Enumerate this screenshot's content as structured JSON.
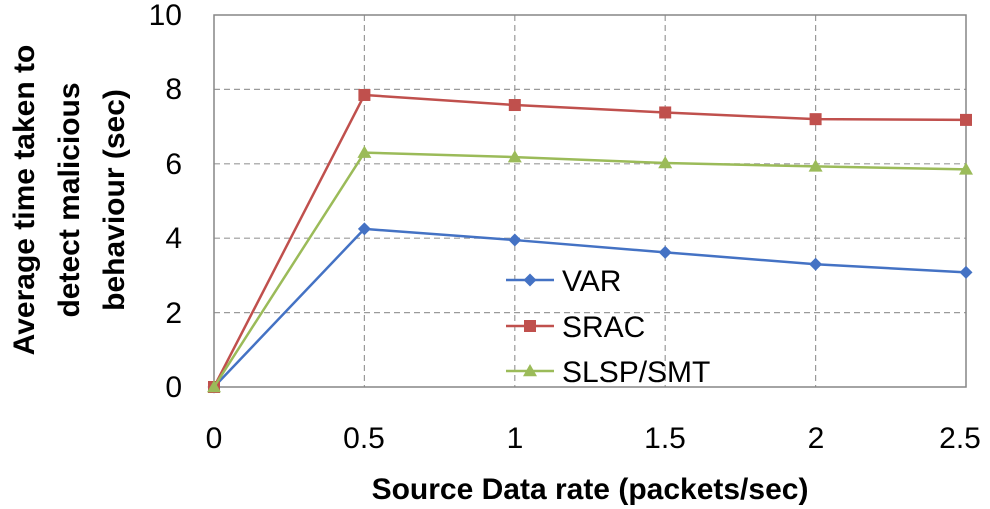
{
  "chart_data": {
    "type": "line",
    "x": [
      0,
      0.5,
      1,
      1.5,
      2,
      2.5
    ],
    "x_tick_labels": [
      "0",
      "0.5",
      "1",
      "1.5",
      "2",
      "2.5"
    ],
    "y_tick_labels": [
      "0",
      "2",
      "4",
      "6",
      "8",
      "10"
    ],
    "xlim": [
      0,
      2.5
    ],
    "ylim": [
      0,
      10
    ],
    "grid": true,
    "xlabel": "Source Data rate (packets/sec)",
    "ylabel_lines": [
      "Average time taken to",
      "detect malicious",
      "behaviour (sec)"
    ],
    "legend_position": "center",
    "series": [
      {
        "name": "VAR",
        "marker": "diamond",
        "color": "#4472C4",
        "values": [
          0,
          4.25,
          3.95,
          3.62,
          3.3,
          3.08
        ]
      },
      {
        "name": "SRAC",
        "marker": "square",
        "color": "#C0504D",
        "values": [
          0,
          7.85,
          7.58,
          7.38,
          7.2,
          7.18
        ]
      },
      {
        "name": "SLSP/SMT",
        "marker": "triangle",
        "color": "#9BBB59",
        "values": [
          0,
          6.3,
          6.18,
          6.02,
          5.93,
          5.85
        ]
      }
    ]
  }
}
